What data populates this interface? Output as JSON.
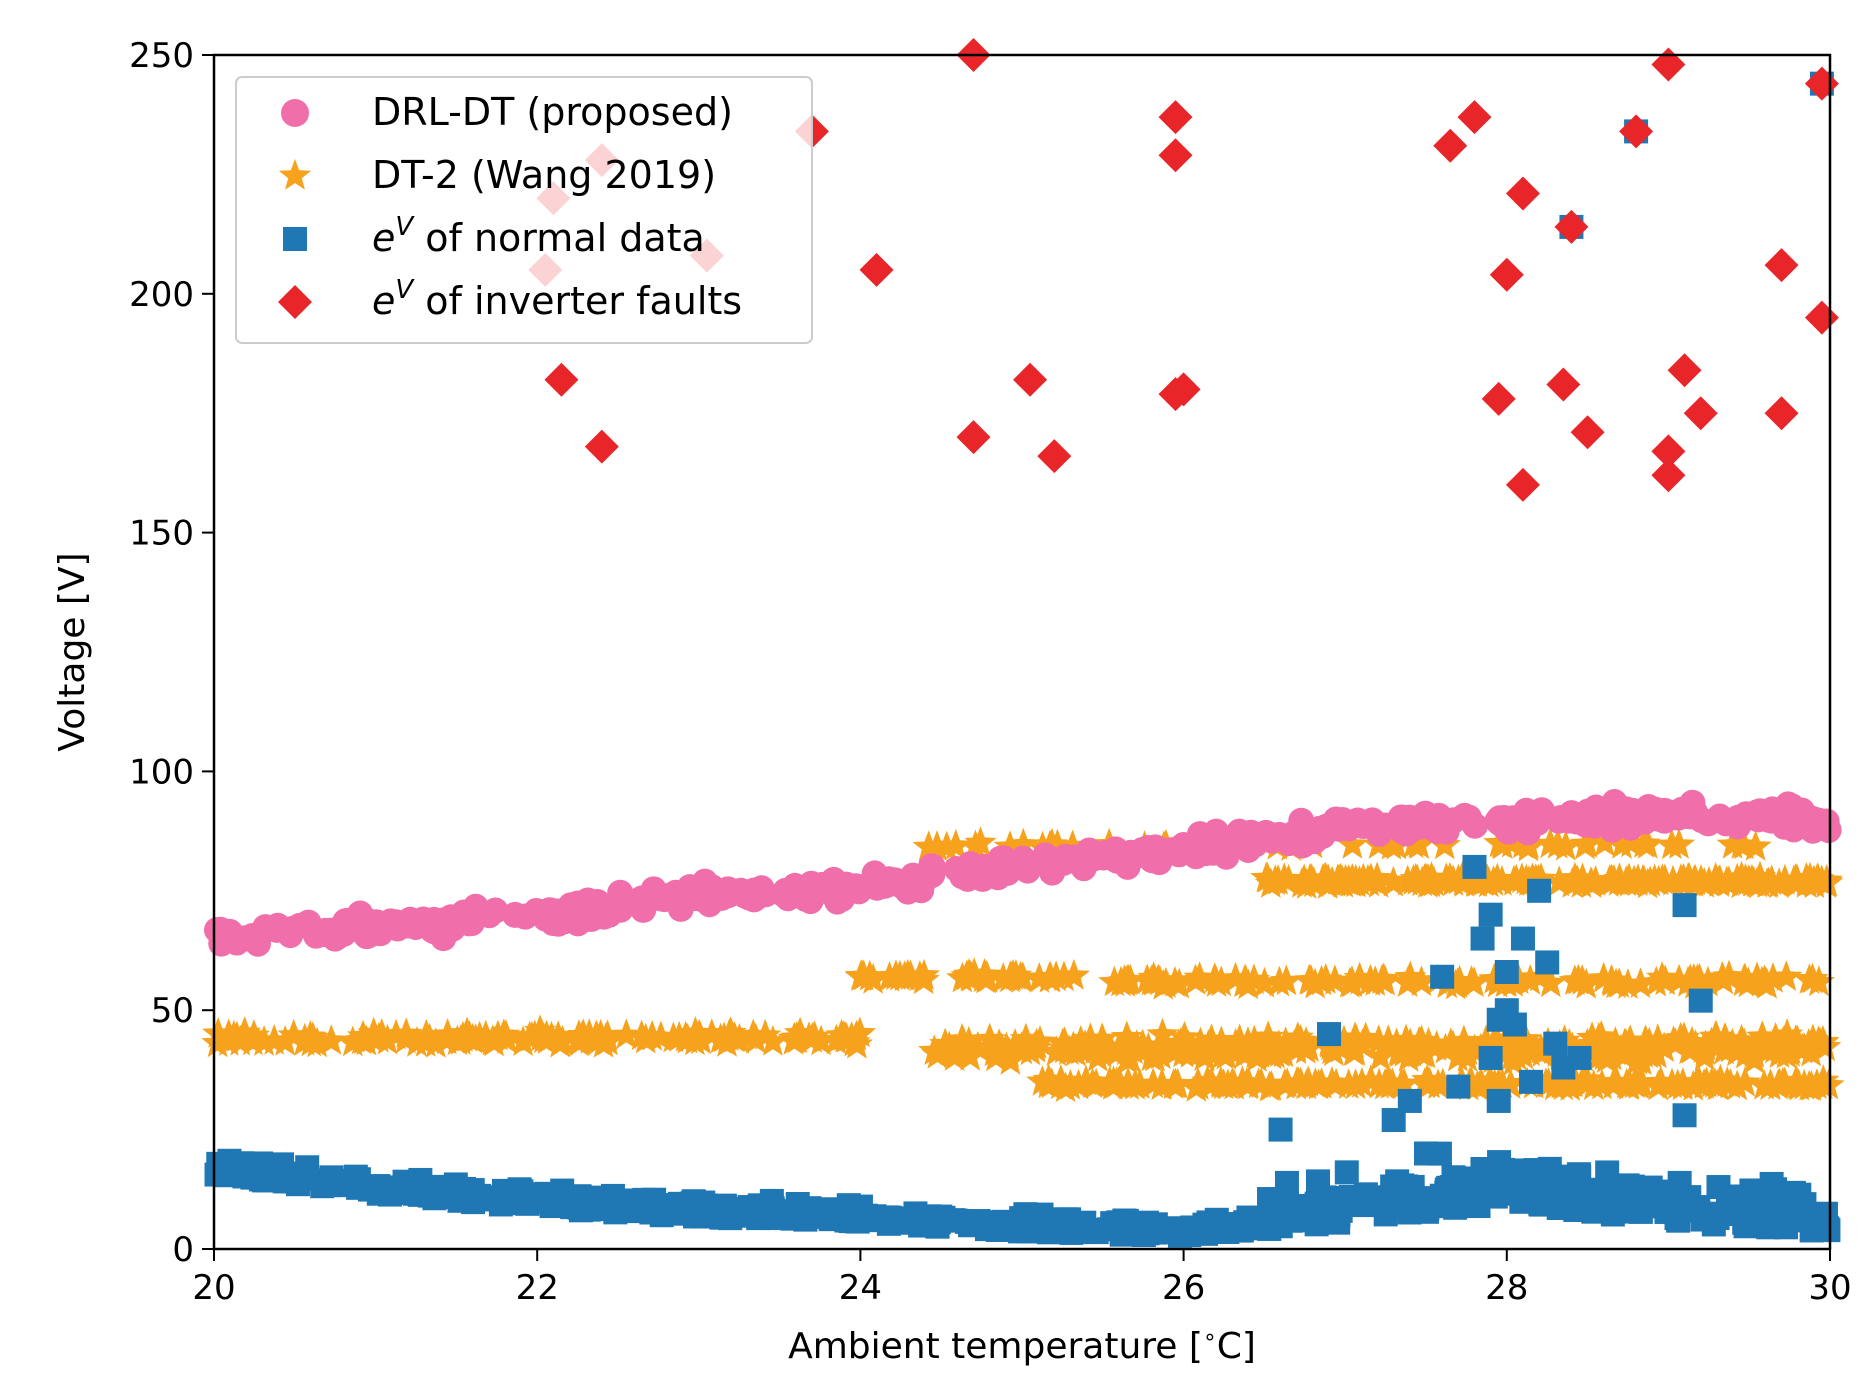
{
  "chart_data": {
    "type": "scatter",
    "title": "",
    "xlabel": "Ambient temperature [$^\\circ$C]",
    "xlabel_text": "Ambient temperature [",
    "xlabel_unit": "C]",
    "xlabel_degree": "∘",
    "ylabel": "Voltage [V]",
    "xlim": [
      20,
      30
    ],
    "ylim": [
      0,
      250
    ],
    "xticks": [
      20,
      22,
      24,
      26,
      28,
      30
    ],
    "yticks": [
      0,
      50,
      100,
      150,
      200,
      250
    ],
    "grid": false,
    "legend_position": "top-left",
    "series": [
      {
        "name": "DRL-DT (proposed)",
        "marker": "circle",
        "color": "#f06ea9",
        "trend": [
          [
            20,
            65
          ],
          [
            21,
            67.5
          ],
          [
            22,
            69.5
          ],
          [
            23,
            74
          ],
          [
            24,
            75.5
          ],
          [
            24.5,
            78
          ],
          [
            25,
            80
          ],
          [
            26,
            84
          ],
          [
            27,
            88
          ],
          [
            28,
            89.5
          ],
          [
            29,
            91
          ],
          [
            30,
            90
          ]
        ],
        "spread": 3.5,
        "count": 520
      },
      {
        "name": "DT-2 (Wang 2019)",
        "marker": "star",
        "color": "#f6a21c",
        "bands": [
          {
            "x": [
              20,
              24.0
            ],
            "y": 44,
            "spread": 1.8,
            "count": 140
          },
          {
            "x": [
              24.0,
              25.4
            ],
            "y": 57,
            "spread": 1.0,
            "count": 40
          },
          {
            "x": [
              25.5,
              30
            ],
            "y": 56,
            "spread": 1.2,
            "count": 110
          },
          {
            "x": [
              24.4,
              30
            ],
            "y": 42,
            "spread": 3.5,
            "count": 320
          },
          {
            "x": [
              25.1,
              30
            ],
            "y": 34.5,
            "spread": 1.0,
            "count": 160
          },
          {
            "x": [
              26.5,
              30
            ],
            "y": 77,
            "spread": 1.0,
            "count": 180
          },
          {
            "x": [
              24.4,
              29.7
            ],
            "y": 84.5,
            "spread": 0.8,
            "count": 60
          }
        ]
      },
      {
        "name": "e^V of normal data",
        "name_prefix": "e",
        "name_sup": "V",
        "name_suffix": " of normal data",
        "marker": "square",
        "color": "#1f77b4",
        "trend": [
          [
            20,
            18
          ],
          [
            21,
            14
          ],
          [
            22,
            11
          ],
          [
            23,
            9
          ],
          [
            24,
            8
          ],
          [
            25,
            6
          ],
          [
            26,
            5
          ],
          [
            27,
            8
          ],
          [
            28,
            12
          ],
          [
            29,
            8
          ],
          [
            30,
            6
          ]
        ],
        "spread": 6,
        "count": 620,
        "outliers": [
          [
            26.9,
            45
          ],
          [
            27.6,
            57
          ],
          [
            27.8,
            80
          ],
          [
            27.9,
            70
          ],
          [
            28.0,
            58
          ],
          [
            28.1,
            65
          ],
          [
            28.2,
            75
          ],
          [
            28.25,
            60
          ],
          [
            27.85,
            65
          ],
          [
            28.0,
            50
          ],
          [
            27.95,
            48
          ],
          [
            28.05,
            47
          ],
          [
            28.15,
            35
          ],
          [
            27.7,
            34
          ],
          [
            27.9,
            40
          ],
          [
            28.3,
            43
          ],
          [
            28.35,
            38
          ],
          [
            28.45,
            40
          ],
          [
            29.1,
            72
          ],
          [
            29.2,
            52
          ],
          [
            29.1,
            28
          ],
          [
            26.6,
            25
          ],
          [
            27.3,
            27
          ],
          [
            27.4,
            31
          ],
          [
            27.5,
            20
          ],
          [
            27.95,
            31
          ],
          [
            28.4,
            214
          ],
          [
            28.8,
            234
          ],
          [
            29.95,
            244
          ]
        ]
      },
      {
        "name": "e^V of inverter faults",
        "name_prefix": "e",
        "name_sup": "V",
        "name_suffix": " of inverter faults",
        "marker": "diamond",
        "color": "#e8262a",
        "points": [
          [
            22.05,
            205
          ],
          [
            22.15,
            182
          ],
          [
            22.1,
            220
          ],
          [
            22.4,
            228
          ],
          [
            22.4,
            168
          ],
          [
            23.05,
            208
          ],
          [
            23.7,
            234
          ],
          [
            24.1,
            205
          ],
          [
            24.7,
            250
          ],
          [
            24.7,
            170
          ],
          [
            25.05,
            182
          ],
          [
            25.2,
            166
          ],
          [
            25.95,
            237
          ],
          [
            25.95,
            229
          ],
          [
            26.0,
            180
          ],
          [
            25.95,
            179
          ],
          [
            27.65,
            231
          ],
          [
            27.8,
            237
          ],
          [
            28.0,
            204
          ],
          [
            27.95,
            178
          ],
          [
            28.1,
            221
          ],
          [
            28.1,
            160
          ],
          [
            28.35,
            181
          ],
          [
            28.4,
            214
          ],
          [
            28.5,
            171
          ],
          [
            28.8,
            234
          ],
          [
            29.0,
            248
          ],
          [
            29.0,
            167
          ],
          [
            29.0,
            162
          ],
          [
            29.1,
            184
          ],
          [
            29.2,
            175
          ],
          [
            29.7,
            206
          ],
          [
            29.7,
            175
          ],
          [
            29.95,
            244
          ],
          [
            29.95,
            195
          ]
        ]
      }
    ]
  }
}
